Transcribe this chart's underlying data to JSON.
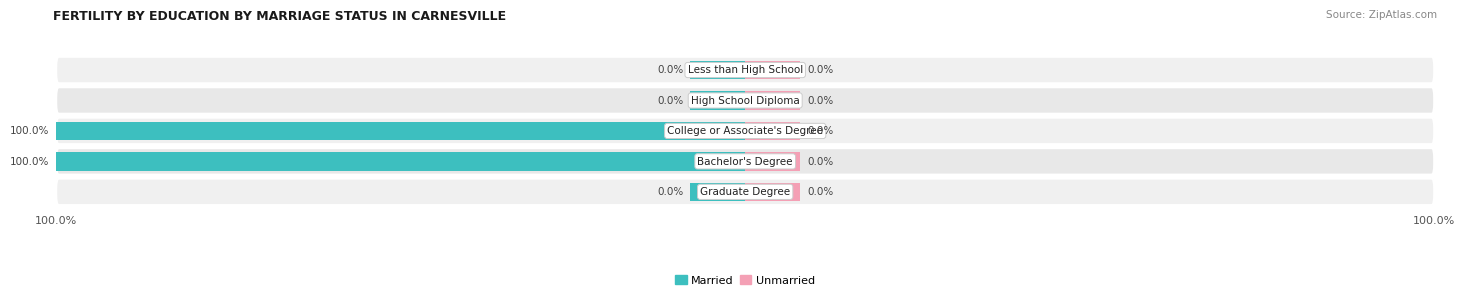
{
  "title": "FERTILITY BY EDUCATION BY MARRIAGE STATUS IN CARNESVILLE",
  "source": "Source: ZipAtlas.com",
  "categories": [
    "Less than High School",
    "High School Diploma",
    "College or Associate's Degree",
    "Bachelor's Degree",
    "Graduate Degree"
  ],
  "married_values": [
    0.0,
    0.0,
    100.0,
    100.0,
    0.0
  ],
  "unmarried_values": [
    0.0,
    0.0,
    0.0,
    0.0,
    0.0
  ],
  "married_color": "#3DBFBF",
  "unmarried_color": "#F4A0B5",
  "row_bg_even": "#f0f0f0",
  "row_bg_odd": "#e8e8e8",
  "label_bg_color": "#ffffff",
  "label_border_color": "#cccccc",
  "title_fontsize": 9,
  "source_fontsize": 7.5,
  "bar_label_fontsize": 7.5,
  "cat_label_fontsize": 7.5,
  "legend_fontsize": 8,
  "xlim_left": -100,
  "xlim_right": 100,
  "zero_stub": 8
}
